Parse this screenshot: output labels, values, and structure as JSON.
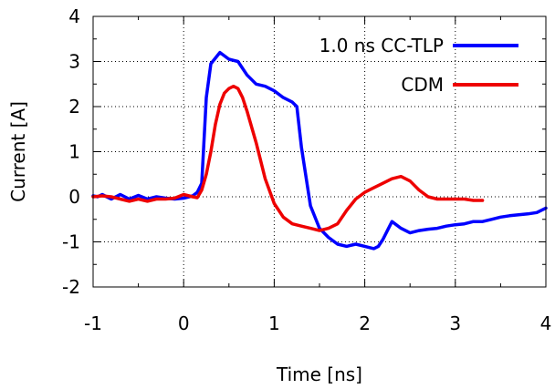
{
  "chart_data": {
    "type": "line",
    "title": "",
    "xlabel": "Time [ns]",
    "ylabel": "Current [A]",
    "xlim": [
      -1,
      4
    ],
    "ylim": [
      -2,
      4
    ],
    "xticks": [
      "-1",
      "0",
      "1",
      "2",
      "3",
      "4"
    ],
    "yticks": [
      "-2",
      "-1",
      "0",
      "1",
      "2",
      "3",
      "4"
    ],
    "grid": true,
    "legend_position": "top-right",
    "series": [
      {
        "name": "1.0 ns CC-TLP",
        "color": "#0000ff",
        "x": [
          -1.0,
          -0.95,
          -0.9,
          -0.85,
          -0.8,
          -0.7,
          -0.6,
          -0.5,
          -0.4,
          -0.3,
          -0.2,
          -0.1,
          0.0,
          0.1,
          0.15,
          0.2,
          0.25,
          0.3,
          0.4,
          0.5,
          0.6,
          0.7,
          0.8,
          0.9,
          1.0,
          1.1,
          1.2,
          1.25,
          1.3,
          1.4,
          1.5,
          1.6,
          1.7,
          1.8,
          1.9,
          2.0,
          2.1,
          2.15,
          2.2,
          2.25,
          2.3,
          2.4,
          2.5,
          2.6,
          2.7,
          2.8,
          2.9,
          3.0,
          3.1,
          3.2,
          3.3,
          3.4,
          3.5,
          3.6,
          3.7,
          3.8,
          3.9,
          4.0
        ],
        "y": [
          0.02,
          0.0,
          0.05,
          0.0,
          -0.05,
          0.05,
          -0.05,
          0.03,
          -0.05,
          0.0,
          -0.03,
          -0.05,
          -0.03,
          0.02,
          0.1,
          0.3,
          2.2,
          2.95,
          3.2,
          3.05,
          3.0,
          2.7,
          2.5,
          2.45,
          2.35,
          2.2,
          2.1,
          2.0,
          1.1,
          -0.2,
          -0.7,
          -0.9,
          -1.05,
          -1.1,
          -1.05,
          -1.1,
          -1.15,
          -1.1,
          -0.95,
          -0.75,
          -0.55,
          -0.7,
          -0.8,
          -0.75,
          -0.72,
          -0.7,
          -0.65,
          -0.62,
          -0.6,
          -0.55,
          -0.55,
          -0.5,
          -0.45,
          -0.42,
          -0.4,
          -0.38,
          -0.35,
          -0.25
        ]
      },
      {
        "name": "CDM",
        "color": "#ee0000",
        "x": [
          -1.0,
          -0.9,
          -0.8,
          -0.7,
          -0.6,
          -0.5,
          -0.4,
          -0.3,
          -0.2,
          -0.1,
          0.0,
          0.1,
          0.15,
          0.2,
          0.25,
          0.3,
          0.35,
          0.4,
          0.45,
          0.5,
          0.55,
          0.6,
          0.65,
          0.7,
          0.8,
          0.9,
          1.0,
          1.1,
          1.2,
          1.3,
          1.4,
          1.5,
          1.6,
          1.7,
          1.8,
          1.9,
          2.0,
          2.1,
          2.2,
          2.3,
          2.4,
          2.5,
          2.6,
          2.7,
          2.8,
          2.9,
          3.0,
          3.1,
          3.2,
          3.3
        ],
        "y": [
          0.0,
          0.02,
          0.0,
          -0.05,
          -0.1,
          -0.05,
          -0.1,
          -0.05,
          -0.05,
          -0.03,
          0.05,
          0.0,
          -0.02,
          0.15,
          0.5,
          1.0,
          1.6,
          2.05,
          2.3,
          2.4,
          2.45,
          2.4,
          2.2,
          1.9,
          1.2,
          0.4,
          -0.15,
          -0.45,
          -0.6,
          -0.65,
          -0.7,
          -0.75,
          -0.7,
          -0.6,
          -0.3,
          -0.05,
          0.1,
          0.2,
          0.3,
          0.4,
          0.45,
          0.35,
          0.15,
          0.0,
          -0.05,
          -0.05,
          -0.05,
          -0.05,
          -0.08,
          -0.08
        ]
      }
    ]
  }
}
